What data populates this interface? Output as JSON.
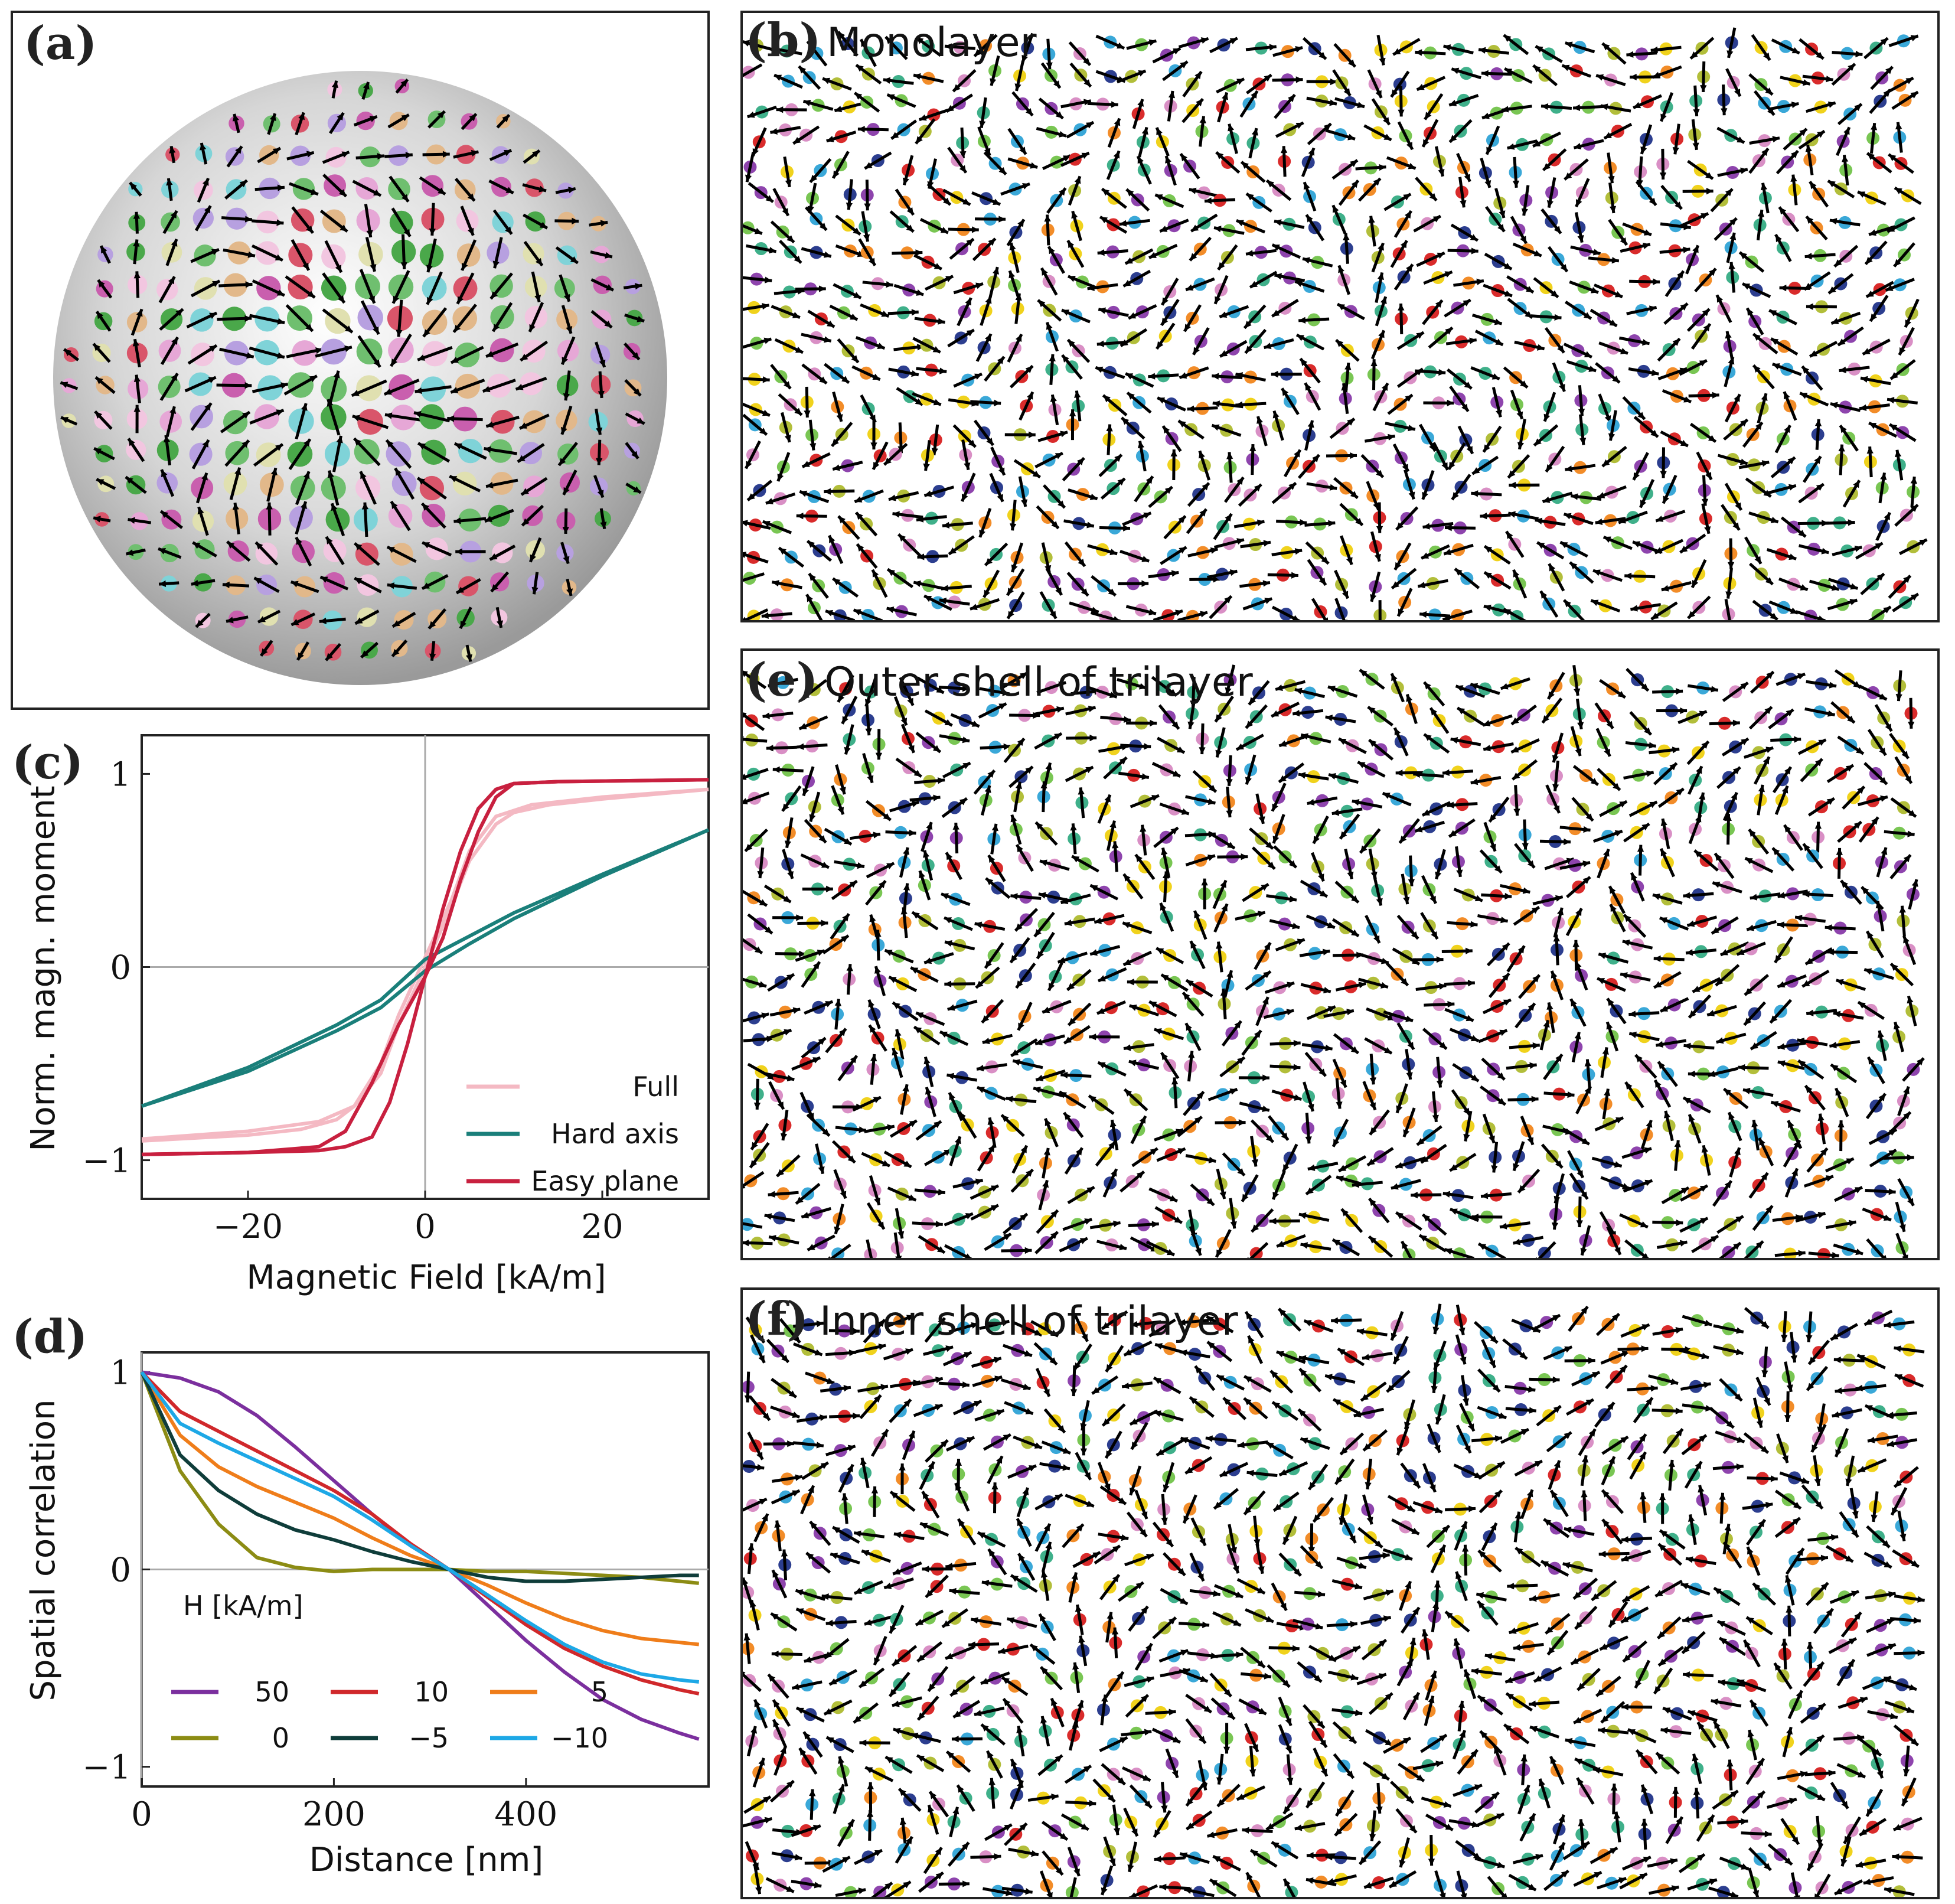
{
  "panels": {
    "a": {
      "label": "(a)"
    },
    "b": {
      "label": "(b)",
      "title": "Monolayer"
    },
    "e": {
      "label": "(e)",
      "title": "Outer shell of trilayer"
    },
    "f": {
      "label": "(f)",
      "title": "Inner shell of trilayer"
    }
  },
  "spin_palette": [
    "#8e44ad",
    "#d98fc5",
    "#2c3e8f",
    "#3aa8d8",
    "#79c653",
    "#f28c28",
    "#f0d21c",
    "#d92b2b",
    "#3fb08a",
    "#b2be3a"
  ],
  "chart_data": [
    {
      "panel_label": "(c)",
      "type": "line",
      "xlabel": "Magnetic Field [kA/m]",
      "ylabel": "Norm. magn. moment",
      "xlim": [
        -32,
        32
      ],
      "ylim": [
        -1.2,
        1.2
      ],
      "xticks": [
        -20,
        0,
        20
      ],
      "yticks": [
        -1,
        0,
        1
      ],
      "xtick_labels": [
        "−20",
        "0",
        "20"
      ],
      "ytick_labels": [
        "−1",
        "0",
        "1"
      ],
      "legend_position": "bottom-right",
      "series": [
        {
          "name": "Full",
          "color": "#f4b9c3",
          "branch_up": {
            "x": [
              -32,
              -20,
              -12,
              -8,
              -5,
              -3,
              0,
              3,
              5,
              8,
              10,
              14,
              20,
              32
            ],
            "y": [
              -0.89,
              -0.85,
              -0.8,
              -0.72,
              -0.55,
              -0.3,
              0.0,
              0.32,
              0.55,
              0.74,
              0.8,
              0.84,
              0.87,
              0.92
            ]
          },
          "branch_down": {
            "x": [
              32,
              20,
              12,
              8,
              5,
              3,
              0,
              -3,
              -5,
              -8,
              -10,
              -14,
              -20,
              -32
            ],
            "y": [
              0.92,
              0.88,
              0.84,
              0.78,
              0.6,
              0.35,
              0.05,
              -0.25,
              -0.5,
              -0.72,
              -0.79,
              -0.84,
              -0.87,
              -0.9
            ]
          }
        },
        {
          "name": "Hard axis",
          "color": "#1a7f7a",
          "branch_up": {
            "x": [
              -32,
              -20,
              -10,
              -5,
              0,
              5,
              10,
              20,
              32
            ],
            "y": [
              -0.72,
              -0.54,
              -0.33,
              -0.21,
              -0.02,
              0.12,
              0.25,
              0.47,
              0.71
            ]
          },
          "branch_down": {
            "x": [
              32,
              20,
              10,
              5,
              0,
              -5,
              -10,
              -20,
              -32
            ],
            "y": [
              0.71,
              0.48,
              0.28,
              0.16,
              0.04,
              -0.17,
              -0.3,
              -0.52,
              -0.72
            ]
          }
        },
        {
          "name": "Easy plane",
          "color": "#c8203f",
          "branch_up": {
            "x": [
              -32,
              -20,
              -12,
              -9,
              -6,
              -3,
              0,
              2,
              4,
              6,
              8,
              10,
              15,
              32
            ],
            "y": [
              -0.97,
              -0.96,
              -0.93,
              -0.85,
              -0.6,
              -0.3,
              -0.05,
              0.3,
              0.6,
              0.82,
              0.92,
              0.95,
              0.96,
              0.97
            ]
          },
          "branch_down": {
            "x": [
              32,
              15,
              10,
              8,
              6,
              4,
              2,
              0,
              -2,
              -4,
              -6,
              -9,
              -12,
              -20,
              -32
            ],
            "y": [
              0.97,
              0.96,
              0.95,
              0.88,
              0.7,
              0.45,
              0.15,
              -0.05,
              -0.4,
              -0.7,
              -0.88,
              -0.93,
              -0.95,
              -0.96,
              -0.97
            ]
          }
        }
      ]
    },
    {
      "panel_label": "(d)",
      "type": "line",
      "xlabel": "Distance [nm]",
      "ylabel": "Spatial correlation",
      "xlim": [
        0,
        590
      ],
      "ylim": [
        -1.1,
        1.1
      ],
      "xticks": [
        0,
        200,
        400
      ],
      "yticks": [
        -1,
        0,
        1
      ],
      "xtick_labels": [
        "0",
        "200",
        "400"
      ],
      "ytick_labels": [
        "−1",
        "0",
        "1"
      ],
      "legend_title": "H [kA/m]",
      "legend_position": "bottom-left",
      "x": [
        0,
        40,
        80,
        120,
        160,
        200,
        240,
        280,
        320,
        360,
        400,
        440,
        480,
        520,
        560,
        580
      ],
      "series": [
        {
          "name": "50",
          "color": "#7b2f9e",
          "values": [
            1.0,
            0.97,
            0.9,
            0.78,
            0.62,
            0.45,
            0.28,
            0.12,
            0.0,
            -0.18,
            -0.36,
            -0.52,
            -0.66,
            -0.76,
            -0.83,
            -0.86
          ]
        },
        {
          "name": "10",
          "color": "#d0282b",
          "values": [
            1.0,
            0.8,
            0.7,
            0.6,
            0.5,
            0.4,
            0.28,
            0.13,
            0.0,
            -0.14,
            -0.28,
            -0.4,
            -0.49,
            -0.56,
            -0.61,
            -0.63
          ]
        },
        {
          "name": "5",
          "color": "#ef7d1a",
          "values": [
            1.0,
            0.68,
            0.52,
            0.42,
            0.34,
            0.26,
            0.16,
            0.07,
            0.0,
            -0.08,
            -0.17,
            -0.25,
            -0.31,
            -0.35,
            -0.37,
            -0.38
          ]
        },
        {
          "name": "0",
          "color": "#8c8c14",
          "values": [
            1.0,
            0.5,
            0.23,
            0.06,
            0.01,
            -0.01,
            0.0,
            0.0,
            0.0,
            -0.01,
            -0.01,
            -0.02,
            -0.03,
            -0.04,
            -0.06,
            -0.07
          ]
        },
        {
          "name": "−5",
          "color": "#0f3d3a",
          "values": [
            1.0,
            0.58,
            0.4,
            0.28,
            0.2,
            0.15,
            0.09,
            0.04,
            0.0,
            -0.04,
            -0.06,
            -0.06,
            -0.05,
            -0.04,
            -0.03,
            -0.03
          ]
        },
        {
          "name": "−10",
          "color": "#1da8e6",
          "values": [
            1.0,
            0.74,
            0.64,
            0.55,
            0.46,
            0.37,
            0.25,
            0.12,
            0.0,
            -0.13,
            -0.26,
            -0.38,
            -0.47,
            -0.53,
            -0.56,
            -0.57
          ]
        }
      ]
    }
  ]
}
